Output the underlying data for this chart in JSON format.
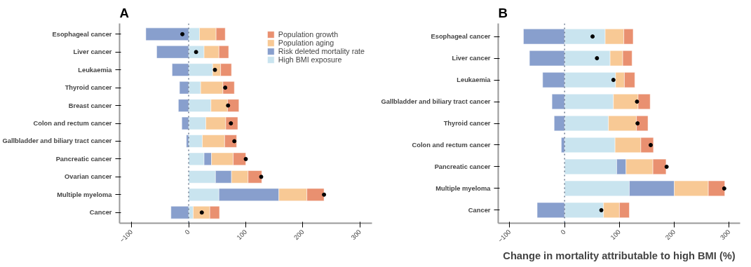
{
  "chart_data": [
    {
      "type": "bar",
      "title": "A",
      "orientation": "horizontal",
      "stacked": true,
      "categories": [
        "Esophageal cancer",
        "Liver cancer",
        "Leukaemia",
        "Thyroid cancer",
        "Breast cancer",
        "Colon and rectum cancer",
        "Gallbladder and biliary tract cancer",
        "Pancreatic cancer",
        "Ovarian cancer",
        "Multiple myeloma",
        "Cancer"
      ],
      "series": [
        {
          "name": "High BMI exposure",
          "color": "#c9e4ef",
          "values": [
            19,
            27,
            42,
            21,
            39,
            30,
            24,
            27,
            47,
            53,
            8
          ]
        },
        {
          "name": "Risk deleted mortality rate",
          "color": "#889fcd",
          "values": [
            -75,
            -56,
            -29,
            -16,
            -18,
            -12,
            -4,
            13,
            28,
            105,
            -31
          ]
        },
        {
          "name": "Population aging",
          "color": "#f8c995",
          "values": [
            29,
            26,
            14,
            39,
            29,
            35,
            39,
            38,
            29,
            49,
            29
          ]
        },
        {
          "name": "Population growth",
          "color": "#e99070",
          "values": [
            16,
            17,
            19,
            20,
            20,
            21,
            21,
            22,
            24,
            30,
            17
          ]
        },
        {
          "type": "scatter",
          "color": "#000000",
          "marker": "circle",
          "values": [
            -11,
            13,
            46,
            64,
            69,
            74,
            80,
            100,
            127,
            237,
            23
          ]
        }
      ],
      "xlim": [
        -121,
        321
      ],
      "xticks": [
        -100,
        0,
        100,
        200,
        300
      ],
      "ref_lines": [
        {
          "axis": "x",
          "value": 0,
          "color": "#6b7a8f",
          "line_style": "dotted"
        }
      ],
      "grid": false,
      "legend": "top right"
    },
    {
      "type": "bar",
      "title": "B",
      "orientation": "horizontal",
      "stacked": true,
      "xlabel": "Change in mortality attributable to high BMI (%)",
      "categories": [
        "Esophageal cancer",
        "Liver cancer",
        "Leukaemia",
        "Gallbladder and biliary tract cancer",
        "Thyroid cancer",
        "Colon and rectum cancer",
        "Pancreatic cancer",
        "Multiple myeloma",
        "Cancer"
      ],
      "series": [
        {
          "color": "#c9e4ef",
          "values": [
            74,
            83,
            93,
            89,
            80,
            92,
            95,
            118,
            71
          ]
        },
        {
          "color": "#889fcd",
          "values": [
            -75,
            -64,
            -40,
            -23,
            -19,
            -6,
            17,
            82,
            -50
          ]
        },
        {
          "color": "#f8c995",
          "values": [
            34,
            23,
            16,
            45,
            51,
            47,
            49,
            62,
            29
          ]
        },
        {
          "color": "#e99070",
          "values": [
            17,
            17,
            19,
            22,
            21,
            23,
            24,
            30,
            18
          ]
        },
        {
          "type": "scatter",
          "color": "#000000",
          "marker": "circle",
          "values": [
            51,
            59,
            89,
            132,
            133,
            157,
            186,
            291,
            67
          ]
        }
      ],
      "xlim": [
        -121,
        320
      ],
      "xticks": [
        -100,
        0,
        100,
        200,
        300
      ],
      "ref_lines": [
        {
          "axis": "x",
          "value": 0,
          "color": "#6b7a8f",
          "line_style": "dotted"
        }
      ],
      "grid": false,
      "legend": false
    }
  ]
}
